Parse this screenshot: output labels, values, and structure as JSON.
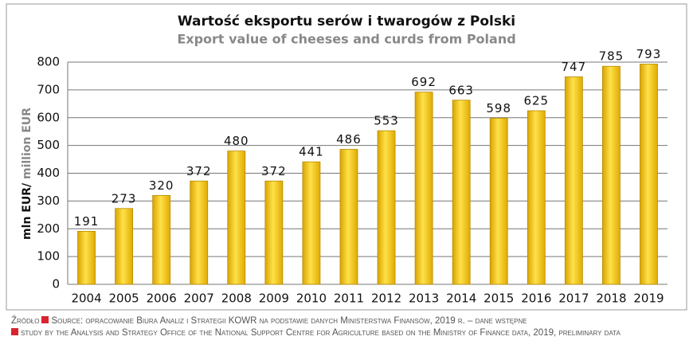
{
  "chart_data": {
    "type": "bar",
    "title": "Wartość eksportu serów i twarogów z Polski",
    "subtitle": "Export value of cheeses and curds from Poland",
    "y_label": [
      "mln EUR/",
      " million EUR"
    ],
    "categories": [
      "2004",
      "2005",
      "2006",
      "2007",
      "2008",
      "2009",
      "2010",
      "2011",
      "2012",
      "2013",
      "2014",
      "2015",
      "2016",
      "2017",
      "2018",
      "2019"
    ],
    "values": [
      191,
      273,
      320,
      372,
      480,
      372,
      441,
      486,
      553,
      692,
      663,
      598,
      625,
      747,
      785,
      793
    ],
    "color": "#f7c91c",
    "ylim": [
      0,
      800
    ],
    "yticks": [
      0,
      100,
      200,
      300,
      400,
      500,
      600,
      700,
      800
    ],
    "grid": true,
    "source": [
      "Źródło",
      "Source: opracowanie Biura Analiz i Strategii KOWR na podstawie danych Ministerstwa Finansów, 2019 r. – dane wstępne",
      "study by the Analysis and Strategy Office of the National Support Centre for Agriculture based on the Ministry of Finance data, 2019, preliminary data"
    ]
  }
}
